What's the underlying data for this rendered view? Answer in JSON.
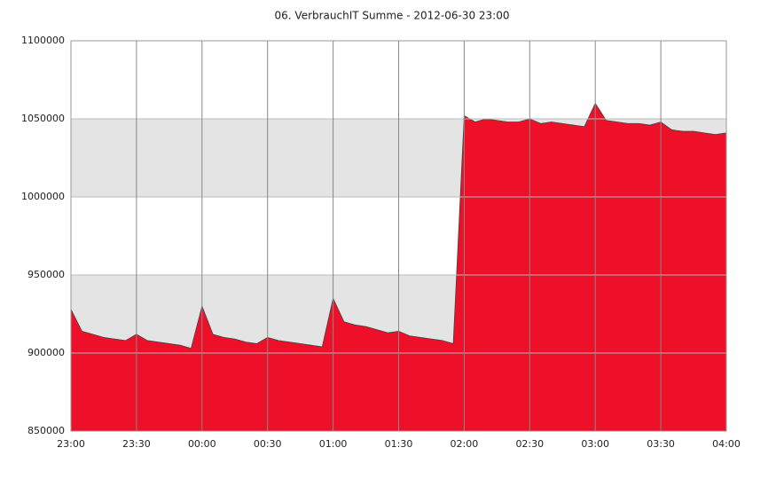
{
  "chart_data": {
    "type": "area",
    "title": "06. VerbrauchIT Summe - 2012-06-30 23:00",
    "categories": [
      "23:00",
      null,
      null,
      null,
      null,
      null,
      "23:30",
      null,
      null,
      null,
      null,
      null,
      "00:00",
      null,
      null,
      null,
      null,
      null,
      "00:30",
      null,
      null,
      null,
      null,
      null,
      "01:00",
      null,
      null,
      null,
      null,
      null,
      "01:30",
      null,
      null,
      null,
      null,
      null,
      "02:00",
      null,
      null,
      null,
      null,
      null,
      "02:30",
      null,
      null,
      null,
      null,
      null,
      "03:00",
      null,
      null,
      null,
      null,
      null,
      "03:30",
      null,
      null,
      null,
      null,
      null,
      "04:00"
    ],
    "series": [
      {
        "name": "VerbrauchIT Summe",
        "color": "#ee1028",
        "values": [
          928000,
          914000,
          912000,
          910000,
          909000,
          908000,
          912000,
          908000,
          907000,
          906000,
          905000,
          903000,
          930000,
          912000,
          910000,
          909000,
          907000,
          906000,
          910000,
          908000,
          907000,
          906000,
          905000,
          904000,
          935000,
          920000,
          918000,
          917000,
          915000,
          913000,
          914000,
          911000,
          910000,
          909000,
          908000,
          906000,
          1052000,
          1048000,
          1050000,
          1049000,
          1048000,
          1048000,
          1050000,
          1047000,
          1048000,
          1047000,
          1046000,
          1045000,
          1060000,
          1049000,
          1048000,
          1047000,
          1047000,
          1046000,
          1048000,
          1043000,
          1042000,
          1042000,
          1041000,
          1040000,
          1041000
        ]
      }
    ],
    "ylim": [
      850000,
      1100000
    ],
    "yticks": [
      850000,
      900000,
      950000,
      1000000,
      1050000,
      1100000
    ],
    "grid": true
  }
}
